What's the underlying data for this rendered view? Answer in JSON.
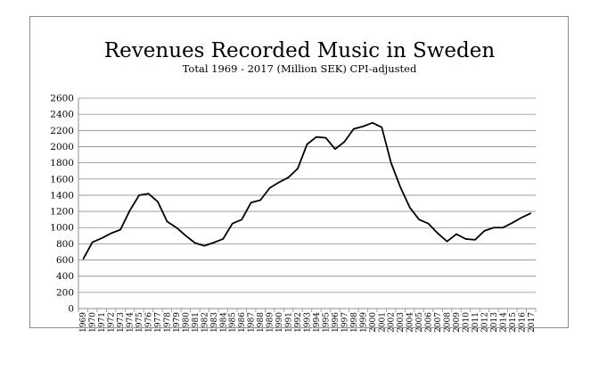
{
  "chart_data": {
    "type": "line",
    "title": "Revenues Recorded Music in Sweden",
    "subtitle": "Total 1969 - 2017 (Million SEK) CPI-adjusted",
    "xlabel": "",
    "ylabel": "",
    "ylim": [
      0,
      2600
    ],
    "ytick_step": 200,
    "grid": true,
    "line_color": "#000000",
    "grid_color": "#8c8c8c",
    "x": [
      "1969",
      "1970",
      "1971",
      "1972",
      "1973",
      "1974",
      "1975",
      "1976",
      "1977",
      "1978",
      "1979",
      "1980",
      "1981",
      "1982",
      "1983",
      "1984",
      "1985",
      "1986",
      "1987",
      "1988",
      "1989",
      "1990",
      "1991",
      "1992",
      "1993",
      "1994",
      "1995",
      "1996",
      "1997",
      "1998",
      "1999",
      "2000",
      "2001",
      "2002",
      "2003",
      "2004",
      "2005",
      "2006",
      "2007",
      "2008",
      "2009",
      "2010",
      "2011",
      "2012",
      "2013",
      "2014",
      "2015",
      "2016",
      "2017"
    ],
    "values": [
      610,
      820,
      870,
      930,
      975,
      1210,
      1400,
      1420,
      1320,
      1075,
      1000,
      900,
      810,
      775,
      815,
      860,
      1050,
      1100,
      1310,
      1340,
      1490,
      1560,
      1620,
      1730,
      2030,
      2120,
      2110,
      1970,
      2060,
      2220,
      2250,
      2295,
      2240,
      1800,
      1500,
      1250,
      1100,
      1050,
      930,
      830,
      920,
      860,
      850,
      960,
      1000,
      1000,
      1060,
      1125,
      1180
    ]
  }
}
